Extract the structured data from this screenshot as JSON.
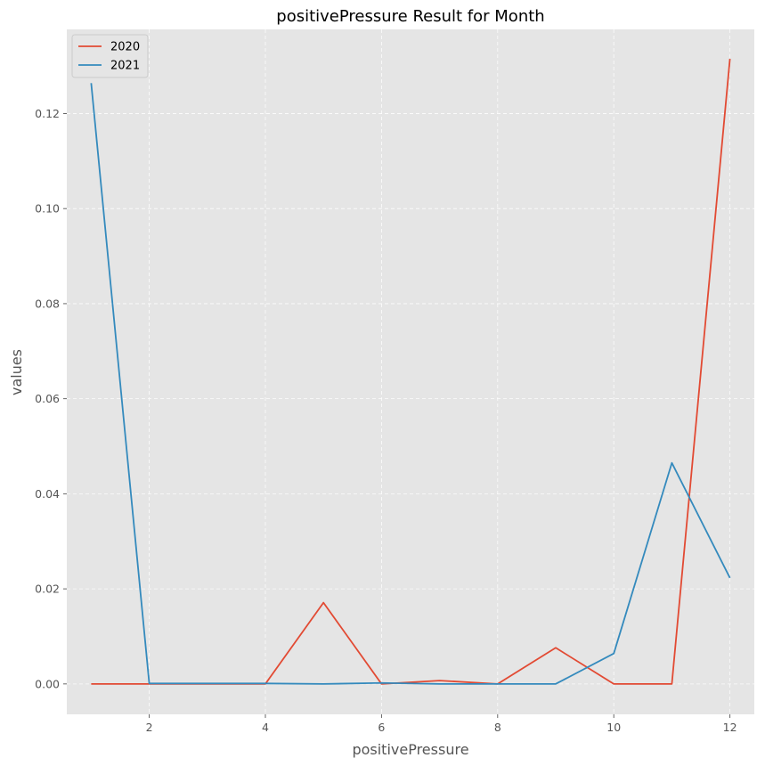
{
  "chart_data": {
    "type": "line",
    "title": "positivePressure Result for Month",
    "xlabel": "positivePressure",
    "ylabel": "values",
    "x": [
      1,
      2,
      3,
      4,
      5,
      6,
      7,
      8,
      9,
      10,
      11,
      12
    ],
    "xlim": [
      0.58,
      12.42
    ],
    "ylim": [
      -0.0064,
      0.1377
    ],
    "xticks": [
      2,
      4,
      6,
      8,
      10,
      12
    ],
    "yticks": [
      0.0,
      0.02,
      0.04,
      0.06,
      0.08,
      0.1,
      0.12
    ],
    "ytick_labels": [
      "0.00",
      "0.02",
      "0.04",
      "0.06",
      "0.08",
      "0.10",
      "0.12"
    ],
    "grid": true,
    "legend": "top-left",
    "series": [
      {
        "name": "2020",
        "color": "#E24A33",
        "values": [
          0.0,
          0.0,
          0.0,
          0.0,
          0.0171,
          0.0,
          0.0007,
          0.0,
          0.0076,
          0.0,
          0.0,
          0.1315
        ]
      },
      {
        "name": "2021",
        "color": "#348ABD",
        "values": [
          0.1264,
          0.0001,
          0.0001,
          0.0001,
          0.0,
          0.0002,
          0.0,
          0.0,
          0.0,
          0.0064,
          0.0465,
          0.0223
        ]
      }
    ],
    "plot_background": "#E5E5E5"
  }
}
